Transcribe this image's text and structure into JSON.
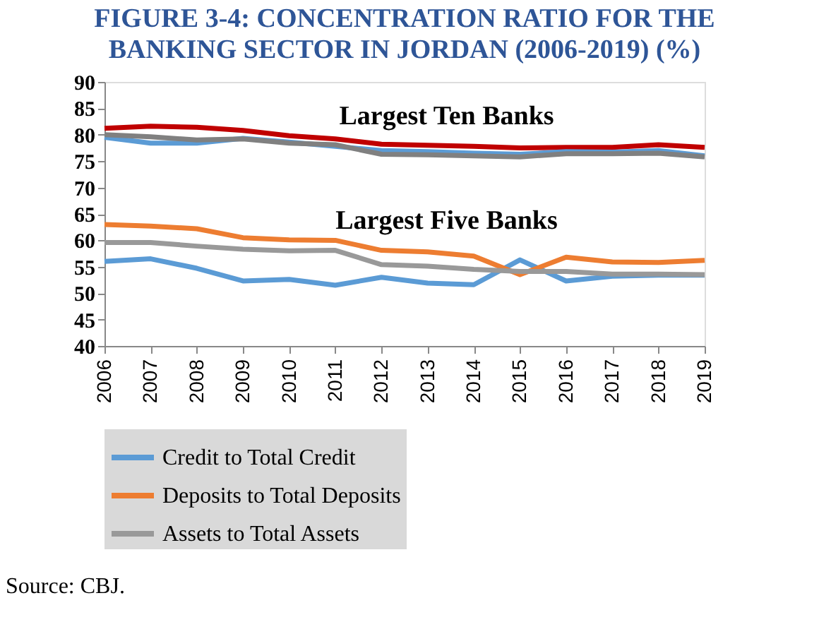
{
  "chart_data": {
    "type": "line",
    "title": "FIGURE 3-4: CONCENTRATION RATIO FOR THE BANKING SECTOR IN JORDAN (2006-2019) (%)",
    "categories": [
      "2006",
      "2007",
      "2008",
      "2009",
      "2010",
      "2011",
      "2012",
      "2013",
      "2014",
      "2015",
      "2016",
      "2017",
      "2018",
      "2019"
    ],
    "series": [
      {
        "color": "#c00000",
        "values": [
          81.2,
          81.6,
          81.4,
          80.8,
          79.8,
          79.2,
          78.2,
          78.0,
          77.8,
          77.5,
          77.6,
          77.6,
          78.1,
          77.6
        ]
      },
      {
        "color": "#5b9bd5",
        "values": [
          79.5,
          78.4,
          78.4,
          79.3,
          78.6,
          77.8,
          77.0,
          76.8,
          76.5,
          76.3,
          76.8,
          76.7,
          77.0,
          76.0
        ]
      },
      {
        "color": "#808080",
        "values": [
          80.0,
          79.6,
          79.0,
          79.2,
          78.4,
          78.1,
          76.3,
          76.2,
          76.0,
          75.8,
          76.4,
          76.4,
          76.5,
          75.8
        ]
      },
      {
        "name": "Credit to Total Credit",
        "color": "#5b9bd5",
        "values": [
          56.0,
          56.5,
          54.7,
          52.3,
          52.6,
          51.5,
          53.0,
          51.9,
          51.6,
          56.3,
          52.3,
          53.2,
          53.4,
          53.4
        ]
      },
      {
        "name": "Deposits to Total Deposits",
        "color": "#ed7d31",
        "values": [
          63.0,
          62.7,
          62.2,
          60.5,
          60.1,
          60.0,
          58.1,
          57.8,
          57.0,
          53.5,
          56.8,
          55.9,
          55.8,
          56.2
        ]
      },
      {
        "name": "Assets to Total Assets",
        "color": "#999999",
        "values": [
          59.6,
          59.6,
          58.9,
          58.3,
          58.0,
          58.1,
          55.4,
          55.1,
          54.5,
          54.1,
          54.1,
          53.6,
          53.6,
          53.5
        ]
      }
    ],
    "ylim": [
      40,
      90
    ],
    "yticks": [
      40,
      45,
      50,
      55,
      60,
      65,
      70,
      75,
      80,
      85,
      90
    ],
    "annotations": [
      "Largest Ten Banks",
      "Largest Five Banks",
      "Source: CBJ."
    ],
    "grid": false,
    "legend": "bottom",
    "marker": "none",
    "line_style": "solid"
  }
}
